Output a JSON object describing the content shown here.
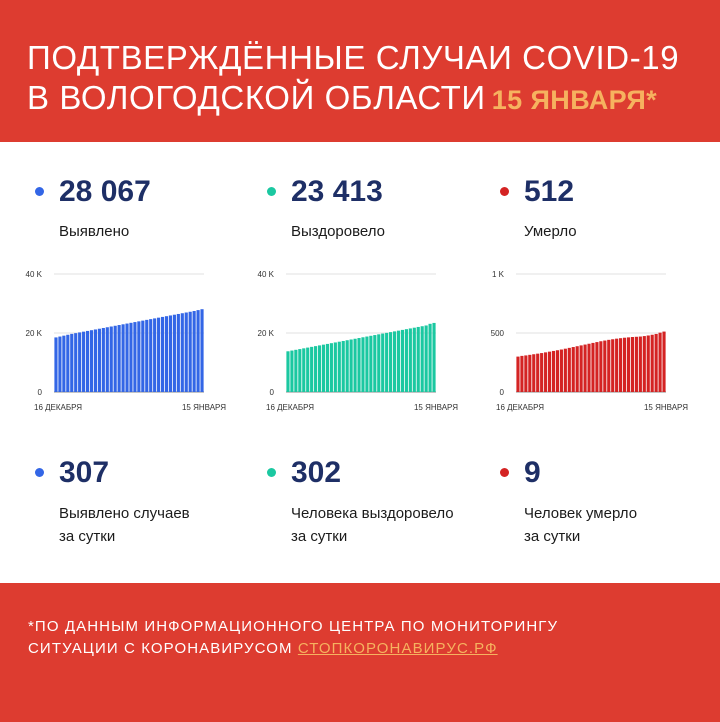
{
  "header": {
    "title_line1": "ПОДТВЕРЖДЁННЫЕ СЛУЧАИ COVID-19",
    "title_line2": "В ВОЛОГОДСКОЙ ОБЛАСТИ",
    "date": "15 ЯНВАРЯ*"
  },
  "colors": {
    "background_red": "#dd3c30",
    "blue": "#3366e6",
    "teal": "#1bc8a1",
    "red": "#d42323",
    "number_text": "#1e2f66",
    "accent_orange": "#f6b25f"
  },
  "totals": [
    {
      "value": "28 067",
      "label": "Выявлено",
      "color_key": "blue"
    },
    {
      "value": "23 413",
      "label": "Выздоровело",
      "color_key": "teal"
    },
    {
      "value": "512",
      "label": "Умерло",
      "color_key": "red"
    }
  ],
  "daily": [
    {
      "value": "307",
      "label_line1": "Выявлено случаев",
      "label_line2": "за сутки",
      "color_key": "blue"
    },
    {
      "value": "302",
      "label_line1": "Человека выздоровело",
      "label_line2": "за сутки",
      "color_key": "teal"
    },
    {
      "value": "9",
      "label_line1": "Человек умерло",
      "label_line2": "за сутки",
      "color_key": "red"
    }
  ],
  "chart_data": [
    {
      "type": "bar",
      "series_label": "Выявлено",
      "color": "#3366e6",
      "x_start_label": "16 ДЕКАБРЯ",
      "x_end_label": "15 ЯНВАРЯ",
      "y_ticks": [
        {
          "value": 0,
          "label": "0"
        },
        {
          "value": 20000,
          "label": "20 K"
        },
        {
          "value": 40000,
          "label": "40 K"
        }
      ],
      "ylim": [
        0,
        40000
      ],
      "values": [
        18500,
        18800,
        19100,
        19400,
        19700,
        19950,
        20200,
        20450,
        20700,
        20950,
        21200,
        21450,
        21700,
        21950,
        22200,
        22450,
        22700,
        22950,
        23200,
        23450,
        23700,
        23950,
        24200,
        24450,
        24700,
        24950,
        25200,
        25450,
        25700,
        25950,
        26200,
        26450,
        26700,
        26950,
        27200,
        27450,
        27760,
        28067
      ]
    },
    {
      "type": "bar",
      "series_label": "Выздоровело",
      "color": "#1bc8a1",
      "x_start_label": "16 ДЕКАБРЯ",
      "x_end_label": "15 ЯНВАРЯ",
      "y_ticks": [
        {
          "value": 0,
          "label": "0"
        },
        {
          "value": 20000,
          "label": "20 K"
        },
        {
          "value": 40000,
          "label": "40 K"
        }
      ],
      "ylim": [
        0,
        40000
      ],
      "values": [
        13800,
        14050,
        14300,
        14550,
        14800,
        15050,
        15300,
        15550,
        15800,
        16050,
        16300,
        16550,
        16800,
        17050,
        17300,
        17550,
        17800,
        18050,
        18300,
        18550,
        18800,
        19050,
        19300,
        19550,
        19800,
        20050,
        20300,
        20550,
        20800,
        21050,
        21300,
        21550,
        21800,
        22050,
        22300,
        22550,
        23111,
        23413
      ]
    },
    {
      "type": "bar",
      "series_label": "Умерло",
      "color": "#d42323",
      "x_start_label": "16 ДЕКАБРЯ",
      "x_end_label": "15 ЯНВАРЯ",
      "y_ticks": [
        {
          "value": 0,
          "label": "0"
        },
        {
          "value": 500,
          "label": "500"
        },
        {
          "value": 1000,
          "label": "1 K"
        }
      ],
      "ylim": [
        0,
        1000
      ],
      "values": [
        300,
        306,
        310,
        315,
        320,
        325,
        330,
        336,
        342,
        348,
        354,
        360,
        367,
        374,
        381,
        388,
        395,
        402,
        409,
        416,
        423,
        430,
        436,
        442,
        447,
        452,
        456,
        460,
        463,
        466,
        468,
        470,
        474,
        479,
        485,
        492,
        503,
        512
      ]
    }
  ],
  "footer": {
    "line1": "*ПО ДАННЫМ ИНФОРМАЦИОННОГО ЦЕНТРА ПО МОНИТОРИНГУ",
    "line2_text": "СИТУАЦИИ С КОРОНАВИРУСОМ ",
    "line2_link": "СТОПКОРОНАВИРУС.РФ"
  }
}
